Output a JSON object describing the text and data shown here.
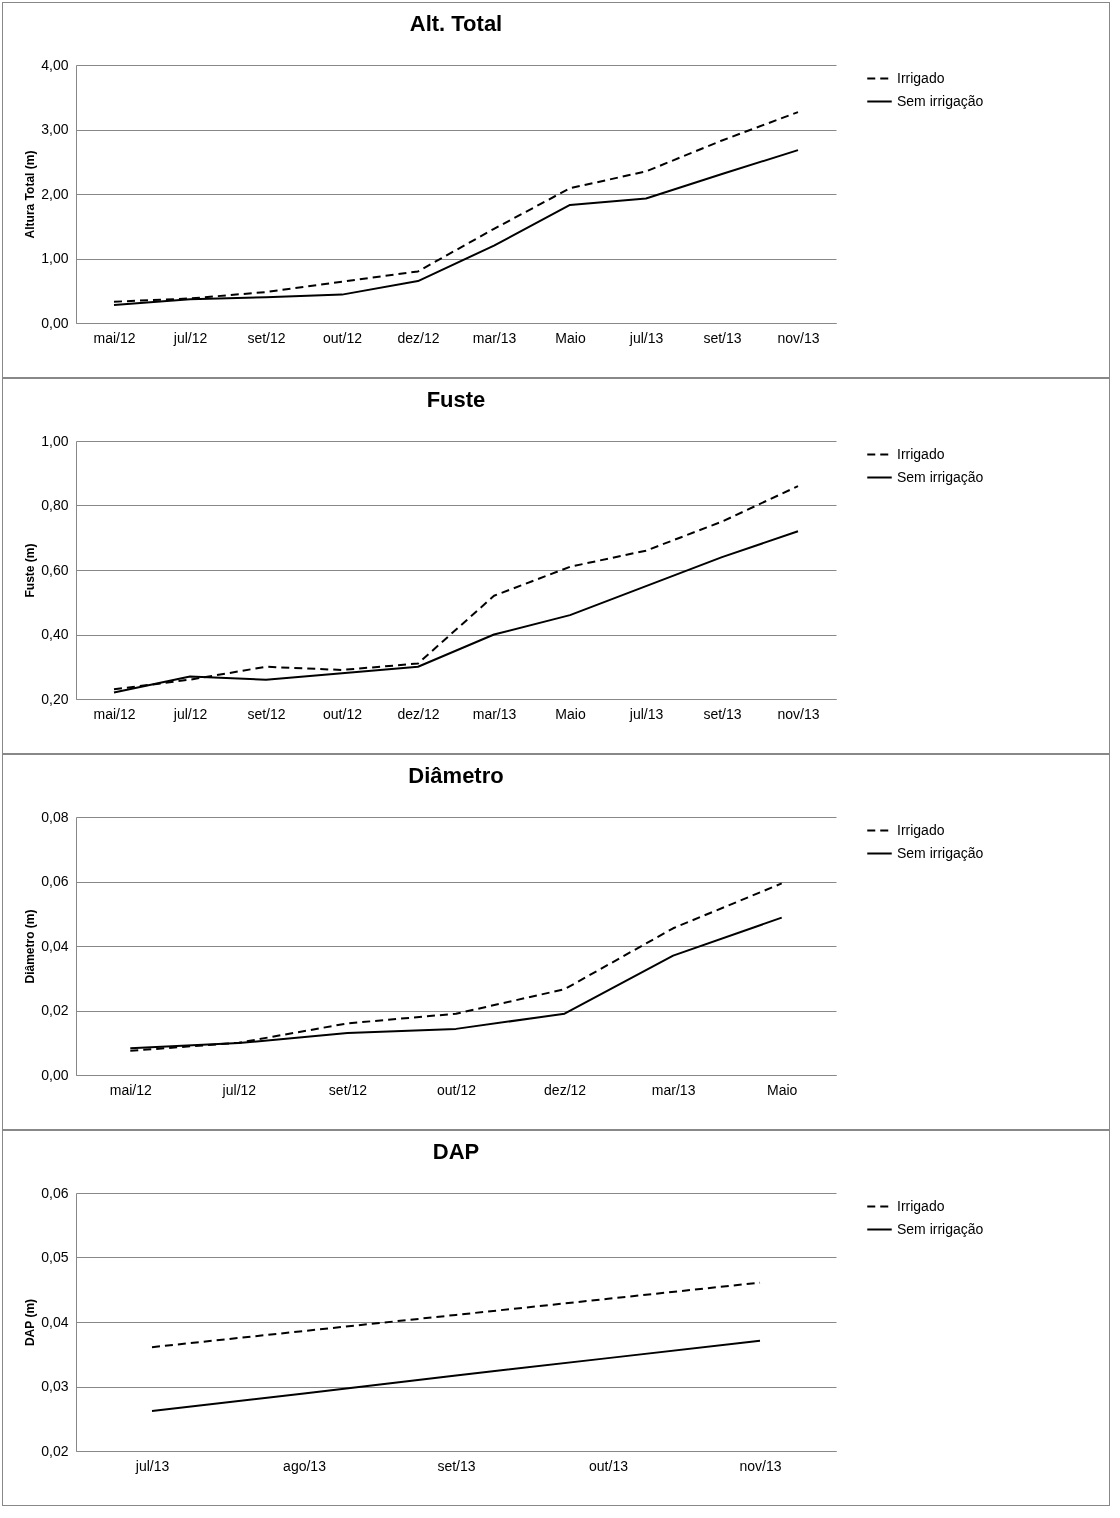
{
  "chart_data": [
    {
      "type": "line",
      "title": "Alt. Total",
      "ylabel": "Altura Total (m)",
      "categories": [
        "mai/12",
        "jul/12",
        "set/12",
        "out/12",
        "dez/12",
        "mar/13",
        "Maio",
        "jul/13",
        "set/13",
        "nov/13"
      ],
      "series": [
        {
          "name": "Irrigado",
          "color": "#000000",
          "line_style": "dashed",
          "values": [
            0.33,
            0.38,
            0.48,
            0.64,
            0.8,
            1.46,
            2.09,
            2.35,
            2.83,
            3.27
          ]
        },
        {
          "name": "Sem irrigação",
          "color": "#000000",
          "line_style": "solid",
          "values": [
            0.28,
            0.37,
            0.4,
            0.44,
            0.65,
            1.2,
            1.83,
            1.93,
            2.31,
            2.68
          ]
        }
      ],
      "ylim": [
        0,
        4
      ],
      "yticks": [
        {
          "value": 0,
          "label": "0,00"
        },
        {
          "value": 1,
          "label": "1,00"
        },
        {
          "value": 2,
          "label": "2,00"
        },
        {
          "value": 3,
          "label": "3,00"
        },
        {
          "value": 4,
          "label": "4,00"
        }
      ],
      "grid": "y",
      "legend": "right"
    },
    {
      "type": "line",
      "title": "Fuste",
      "ylabel": "Fuste (m)",
      "categories": [
        "mai/12",
        "jul/12",
        "set/12",
        "out/12",
        "dez/12",
        "mar/13",
        "Maio",
        "jul/13",
        "set/13",
        "nov/13"
      ],
      "series": [
        {
          "name": "Irrigado",
          "color": "#000000",
          "line_style": "dashed",
          "values": [
            0.23,
            0.26,
            0.3,
            0.29,
            0.31,
            0.52,
            0.61,
            0.66,
            0.75,
            0.86
          ]
        },
        {
          "name": "Sem irrigação",
          "color": "#000000",
          "line_style": "solid",
          "values": [
            0.22,
            0.27,
            0.26,
            0.28,
            0.3,
            0.4,
            0.46,
            0.55,
            0.64,
            0.72
          ]
        }
      ],
      "ylim": [
        0.2,
        1
      ],
      "yticks": [
        {
          "value": 0.2,
          "label": "0,20"
        },
        {
          "value": 0.4,
          "label": "0,40"
        },
        {
          "value": 0.6,
          "label": "0,60"
        },
        {
          "value": 0.8,
          "label": "0,80"
        },
        {
          "value": 1,
          "label": "1,00"
        }
      ],
      "grid": "y",
      "legend": "right"
    },
    {
      "type": "line",
      "title": "Diâmetro",
      "ylabel": "Diâmetro (m)",
      "categories": [
        "mai/12",
        "jul/12",
        "set/12",
        "out/12",
        "dez/12",
        "mar/13",
        "Maio"
      ],
      "series": [
        {
          "name": "Irrigado",
          "color": "#000000",
          "line_style": "dashed",
          "values": [
            0.0075,
            0.01,
            0.016,
            0.019,
            0.0266,
            0.0455,
            0.0594
          ]
        },
        {
          "name": "Sem irrigação",
          "color": "#000000",
          "line_style": "solid",
          "values": [
            0.0083,
            0.0099,
            0.013,
            0.0143,
            0.019,
            0.037,
            0.0488
          ]
        }
      ],
      "ylim": [
        0,
        0.08
      ],
      "yticks": [
        {
          "value": 0,
          "label": "0,00"
        },
        {
          "value": 0.02,
          "label": "0,02"
        },
        {
          "value": 0.04,
          "label": "0,04"
        },
        {
          "value": 0.06,
          "label": "0,06"
        },
        {
          "value": 0.08,
          "label": "0,08"
        }
      ],
      "grid": "y",
      "legend": "right"
    },
    {
      "type": "line",
      "title": "DAP",
      "ylabel": "DAP (m)",
      "categories": [
        "jul/13",
        "ago/13",
        "set/13",
        "out/13",
        "nov/13"
      ],
      "series": [
        {
          "name": "Irrigado",
          "color": "#000000",
          "line_style": "dashed",
          "values": [
            0.0361,
            0.0386,
            0.0411,
            0.0436,
            0.0461
          ]
        },
        {
          "name": "Sem irrigação",
          "color": "#000000",
          "line_style": "solid",
          "values": [
            0.0262,
            0.0289,
            0.0317,
            0.0344,
            0.0371
          ]
        }
      ],
      "ylim": [
        0.02,
        0.06
      ],
      "yticks": [
        {
          "value": 0.02,
          "label": "0,02"
        },
        {
          "value": 0.03,
          "label": "0,03"
        },
        {
          "value": 0.04,
          "label": "0,04"
        },
        {
          "value": 0.05,
          "label": "0,05"
        },
        {
          "value": 0.06,
          "label": "0,06"
        }
      ],
      "grid": "y",
      "legend": "right"
    }
  ]
}
